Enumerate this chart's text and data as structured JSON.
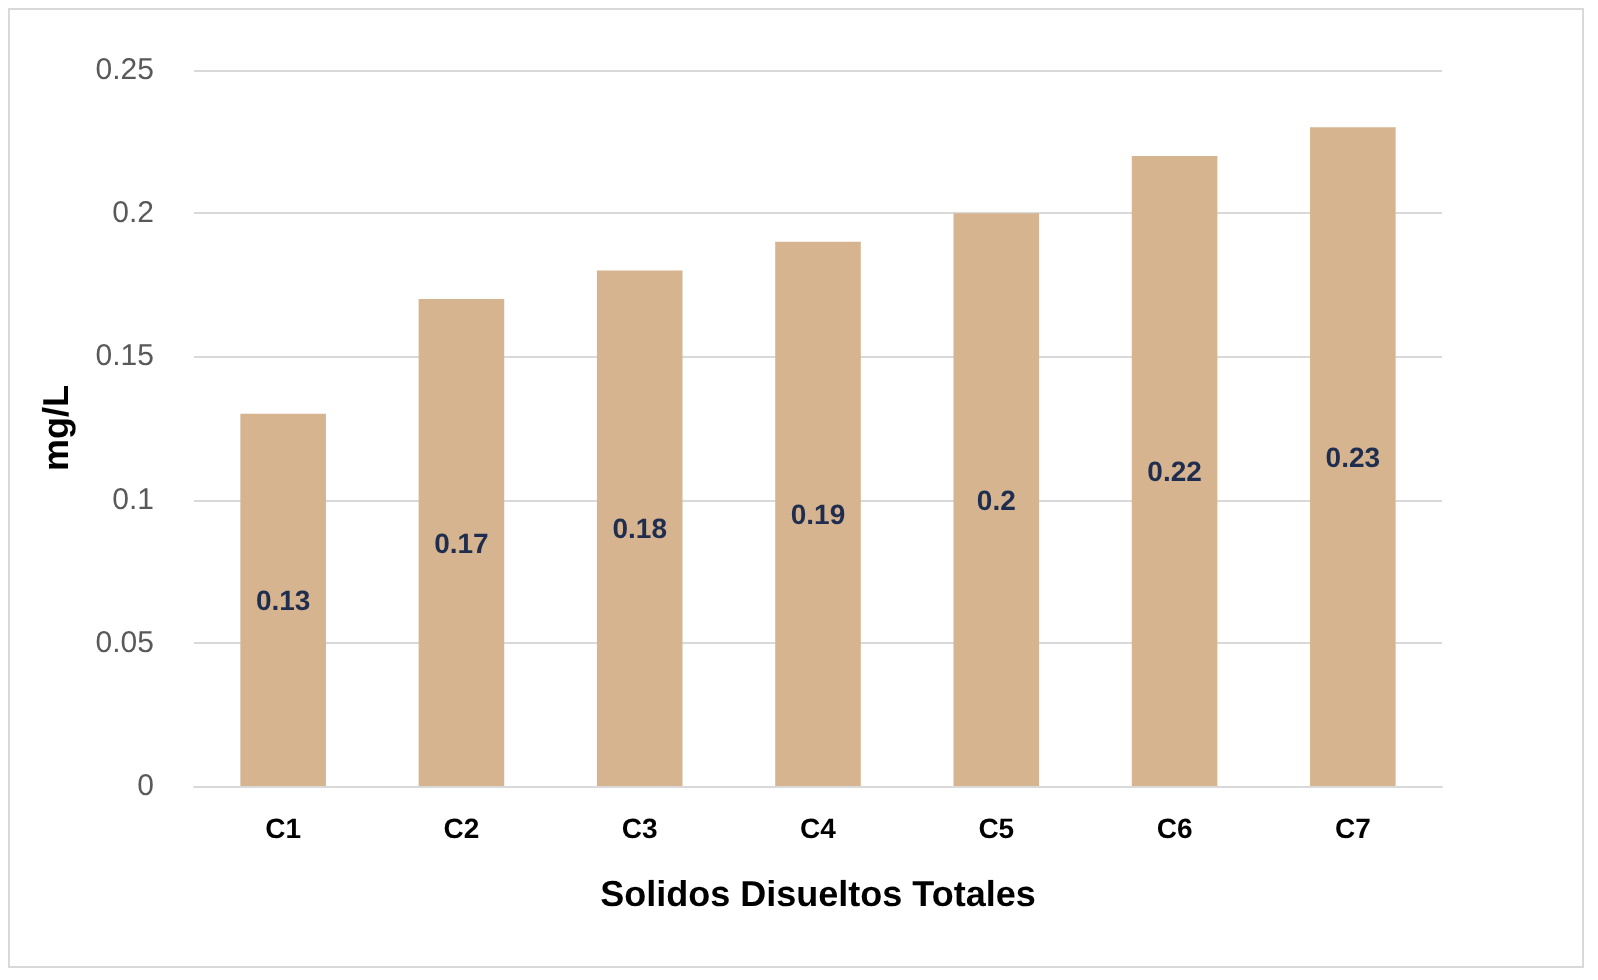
{
  "chart_data": {
    "type": "bar",
    "xlabel": "Solidos Disueltos Totales",
    "ylabel": "mg/L",
    "categories": [
      "C1",
      "C2",
      "C3",
      "C4",
      "C5",
      "C6",
      "C7"
    ],
    "values": [
      0.13,
      0.17,
      0.18,
      0.19,
      0.2,
      0.22,
      0.23
    ],
    "color": "#d5b48f",
    "ylim": [
      0,
      0.25
    ],
    "yticks": [
      0,
      0.05,
      0.1,
      0.15,
      0.2,
      0.25
    ],
    "grid": "y",
    "data_labels": true
  }
}
